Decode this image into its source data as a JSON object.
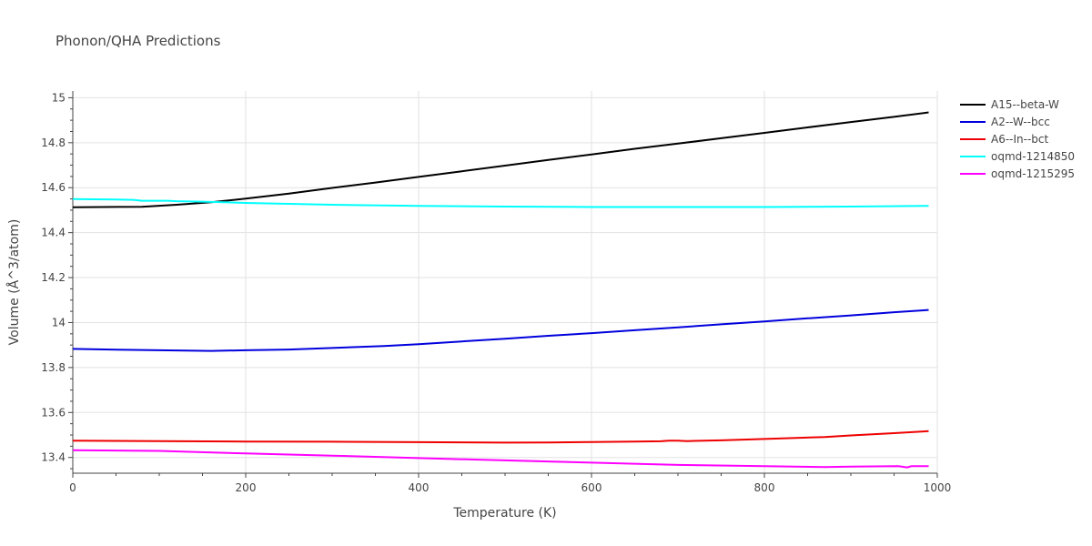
{
  "chart_data": {
    "type": "line",
    "title": "Phonon/QHA Predictions",
    "xlabel": "Temperature (K)",
    "ylabel": "Volume (Å^3/atom)",
    "xlim": [
      0,
      1000
    ],
    "ylim": [
      13.33,
      15.03
    ],
    "xticks": [
      0,
      200,
      400,
      600,
      800,
      1000
    ],
    "yticks": [
      13.4,
      13.6,
      13.8,
      14,
      14.2,
      14.4,
      14.6,
      14.8,
      15
    ],
    "xtick_labels": [
      "0",
      "200",
      "400",
      "600",
      "800",
      "1000"
    ],
    "ytick_labels": [
      "13.4",
      "13.6",
      "13.8",
      "14",
      "14.2",
      "14.4",
      "14.6",
      "14.8",
      "15"
    ],
    "grid": true,
    "legend_position": "top-right",
    "series": [
      {
        "name": "A15--beta-W",
        "color": "#000000",
        "x": [
          0,
          80,
          120,
          160,
          200,
          250,
          300,
          350,
          400,
          450,
          500,
          550,
          600,
          650,
          700,
          750,
          800,
          850,
          900,
          950,
          990
        ],
        "y": [
          14.513,
          14.515,
          14.524,
          14.535,
          14.551,
          14.574,
          14.599,
          14.623,
          14.648,
          14.673,
          14.698,
          14.723,
          14.748,
          14.773,
          14.796,
          14.82,
          14.844,
          14.868,
          14.892,
          14.915,
          14.935
        ]
      },
      {
        "name": "A2--W--bcc",
        "color": "#0000dd",
        "x": [
          0,
          60,
          120,
          160,
          200,
          250,
          300,
          360,
          400,
          450,
          500,
          550,
          600,
          650,
          700,
          750,
          800,
          850,
          900,
          950,
          990
        ],
        "y": [
          13.883,
          13.879,
          13.876,
          13.874,
          13.877,
          13.88,
          13.887,
          13.896,
          13.904,
          13.916,
          13.928,
          13.941,
          13.953,
          13.966,
          13.979,
          13.992,
          14.005,
          14.019,
          14.032,
          14.046,
          14.056
        ]
      },
      {
        "name": "A6--In--bct",
        "color": "#ee0000",
        "x": [
          0,
          100,
          200,
          300,
          400,
          500,
          550,
          600,
          650,
          680,
          690,
          700,
          710,
          750,
          800,
          870,
          900,
          950,
          990
        ],
        "y": [
          13.475,
          13.473,
          13.471,
          13.47,
          13.468,
          13.466,
          13.467,
          13.469,
          13.471,
          13.472,
          13.475,
          13.475,
          13.473,
          13.476,
          13.482,
          13.491,
          13.498,
          13.508,
          13.517
        ]
      },
      {
        "name": "oqmd-1214850",
        "color": "#00ffff",
        "x": [
          0,
          50,
          70,
          80,
          110,
          120,
          150,
          200,
          300,
          400,
          500,
          600,
          700,
          800,
          900,
          990
        ],
        "y": [
          14.549,
          14.547,
          14.546,
          14.542,
          14.542,
          14.54,
          14.538,
          14.532,
          14.524,
          14.519,
          14.516,
          14.514,
          14.514,
          14.514,
          14.516,
          14.519
        ]
      },
      {
        "name": "oqmd-1215295",
        "color": "#ff00ff",
        "x": [
          0,
          100,
          200,
          300,
          400,
          500,
          600,
          700,
          800,
          870,
          900,
          955,
          965,
          970,
          990
        ],
        "y": [
          13.432,
          13.429,
          13.418,
          13.408,
          13.397,
          13.387,
          13.377,
          13.367,
          13.361,
          13.357,
          13.359,
          13.361,
          13.356,
          13.361,
          13.361
        ]
      }
    ]
  }
}
